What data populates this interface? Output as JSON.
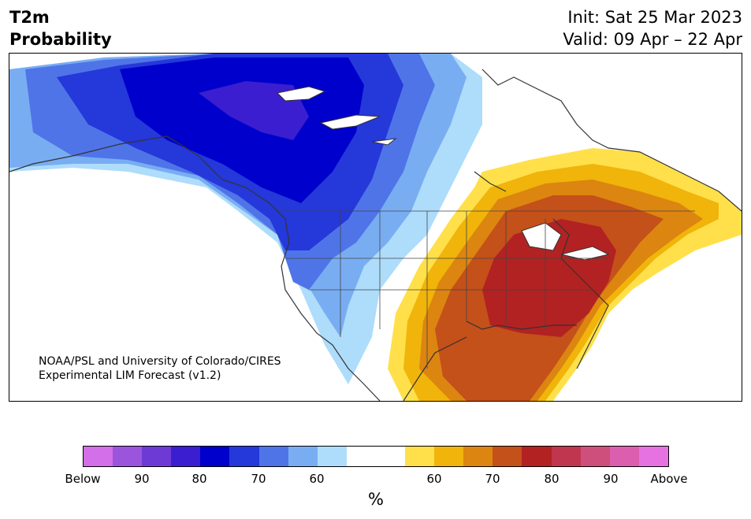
{
  "header": {
    "title_line1": "T2m",
    "title_line2": "Probability",
    "init": "Init: Sat 25 Mar 2023",
    "valid": "Valid: 09 Apr – 22 Apr"
  },
  "credit": {
    "line1": "NOAA/PSL and University of Colorado/CIRES",
    "line2": "Experimental LIM Forecast (v1.2)"
  },
  "colorbar": {
    "colors": [
      "#d36fe8",
      "#9b55dc",
      "#6e3ad6",
      "#3a1ed0",
      "#0000cc",
      "#2538da",
      "#4f74e8",
      "#79adf2",
      "#aedcfb",
      "#ffffff",
      "#ffffff",
      "#ffe04a",
      "#f0b40a",
      "#dc8510",
      "#c4501a",
      "#b22222",
      "#c0364e",
      "#cf4f7c",
      "#db5fae",
      "#e672e2"
    ],
    "ticks": [
      "Below",
      "90",
      "80",
      "70",
      "60",
      "60",
      "70",
      "80",
      "90",
      "Above"
    ],
    "unit": "%"
  },
  "map": {
    "colors": {
      "ocean": "#ffffff",
      "cold_60": "#aedcfb",
      "cold_65": "#79adf2",
      "cold_70": "#4f74e8",
      "cold_75": "#2538da",
      "cold_80": "#0000cc",
      "cold_85": "#3a1ed0",
      "warm_60": "#ffe04a",
      "warm_65": "#f0b40a",
      "warm_70": "#dc8510",
      "warm_75": "#c4501a",
      "warm_80": "#b22222",
      "border": "#333333"
    }
  }
}
